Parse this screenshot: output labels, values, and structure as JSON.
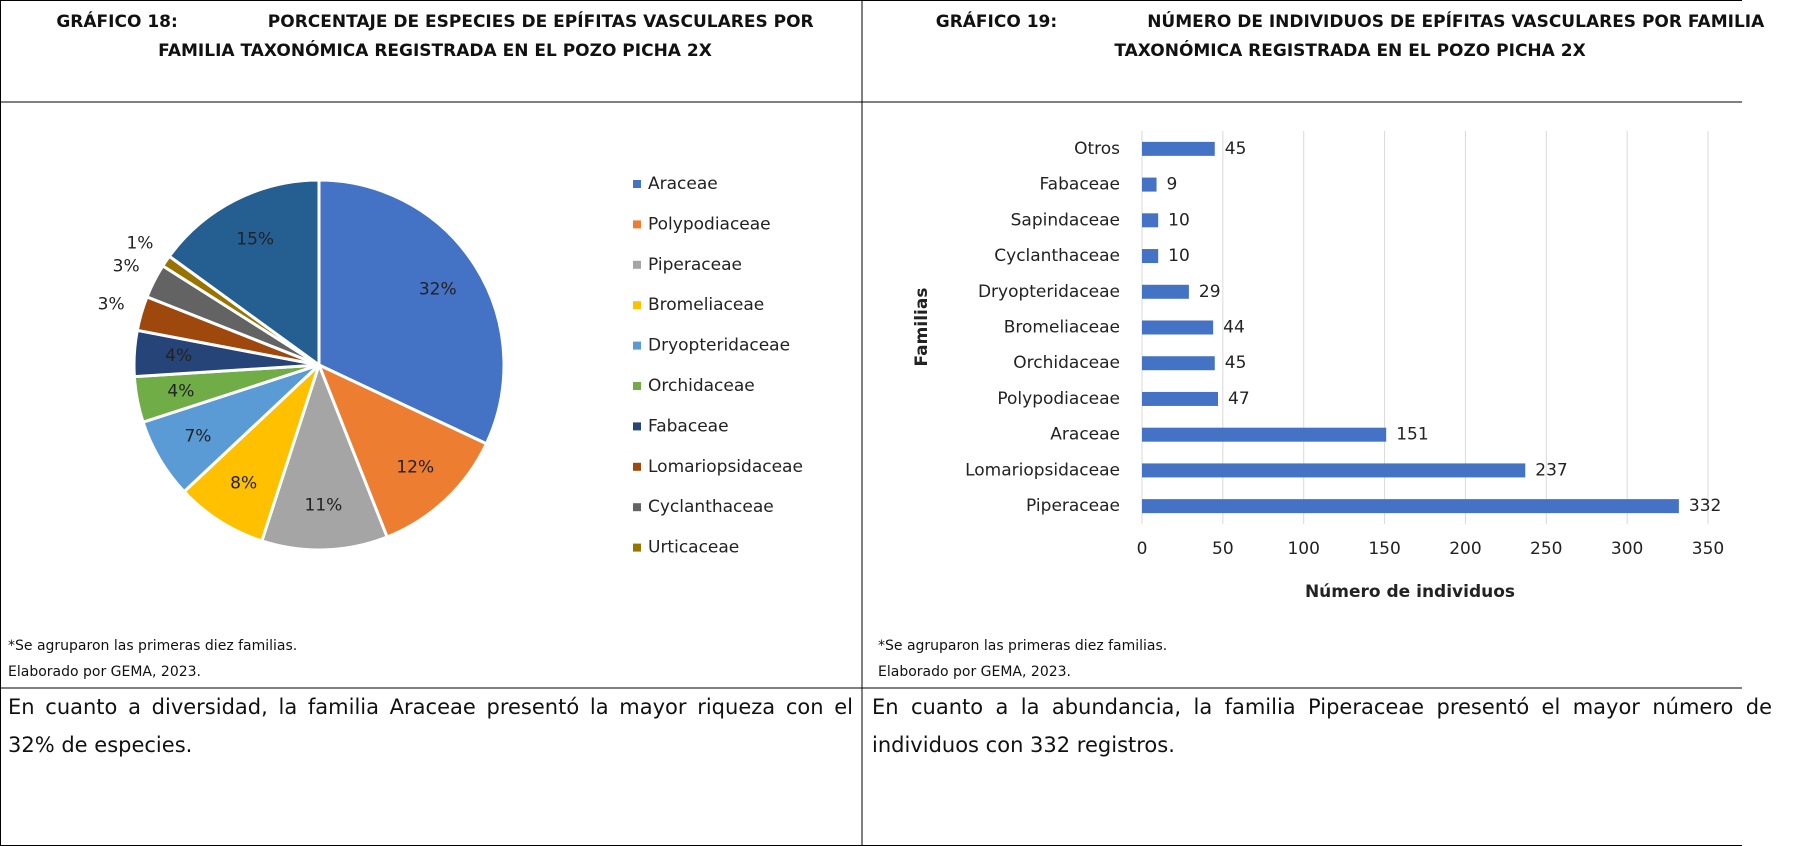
{
  "chart_data": [
    {
      "type": "pie",
      "label": "GRÁFICO 18:",
      "title": "PORCENTAJE DE ESPECIES DE EPÍFITAS VASCULARES POR FAMILIA TAXONÓMICA REGISTRADA EN EL POZO PICHA 2X",
      "categories": [
        "Araceae",
        "Polypodiaceae",
        "Piperaceae",
        "Bromeliaceae",
        "Dryopteridaceae",
        "Orchidaceae",
        "Fabaceae",
        "Lomariopsidaceae",
        "Cyclanthaceae",
        "Urticaceae",
        null
      ],
      "values": [
        32,
        12,
        11,
        8,
        7,
        4,
        4,
        3,
        3,
        1,
        15
      ],
      "value_labels": [
        "32%",
        "12%",
        "11%",
        "8%",
        "7%",
        "4%",
        "4%",
        "3%",
        "3%",
        "1%",
        "15%"
      ],
      "colors": [
        "#4472c4",
        "#ed7d31",
        "#a5a5a5",
        "#ffc000",
        "#5b9bd5",
        "#70ad47",
        "#264478",
        "#9e480e",
        "#636363",
        "#997300",
        "#255e91"
      ],
      "legend": "right",
      "notes": [
        "*Se agruparon las primeras diez familias.",
        "Elaborado por GEMA, 2023."
      ],
      "caption": "En cuanto a diversidad, la familia Araceae presentó la mayor riqueza con el 32% de especies."
    },
    {
      "type": "barh",
      "label": "GRÁFICO 19:",
      "title": "NÚMERO DE INDIVIDUOS DE EPÍFITAS VASCULARES POR FAMILIA TAXONÓMICA REGISTRADA EN EL POZO PICHA 2X",
      "categories": [
        "Otros",
        "Fabaceae",
        "Sapindaceae",
        "Cyclanthaceae",
        "Dryopteridaceae",
        "Bromeliaceae",
        "Orchidaceae",
        "Polypodiaceae",
        "Araceae",
        "Lomariopsidaceae",
        "Piperaceae"
      ],
      "values": [
        45,
        9,
        10,
        10,
        29,
        44,
        45,
        47,
        151,
        237,
        332
      ],
      "color": "#4472c4",
      "xlim": [
        0,
        350
      ],
      "xticks": [
        0,
        50,
        100,
        150,
        200,
        250,
        300,
        350
      ],
      "grid": true,
      "xlabel": "Número de individuos",
      "ylabel": "Familias",
      "notes": [
        "*Se agruparon las primeras diez familias.",
        "Elaborado por GEMA, 2023."
      ],
      "caption": "En cuanto a la abundancia, la familia Piperaceae presentó el mayor número de individuos con 332 registros."
    }
  ]
}
